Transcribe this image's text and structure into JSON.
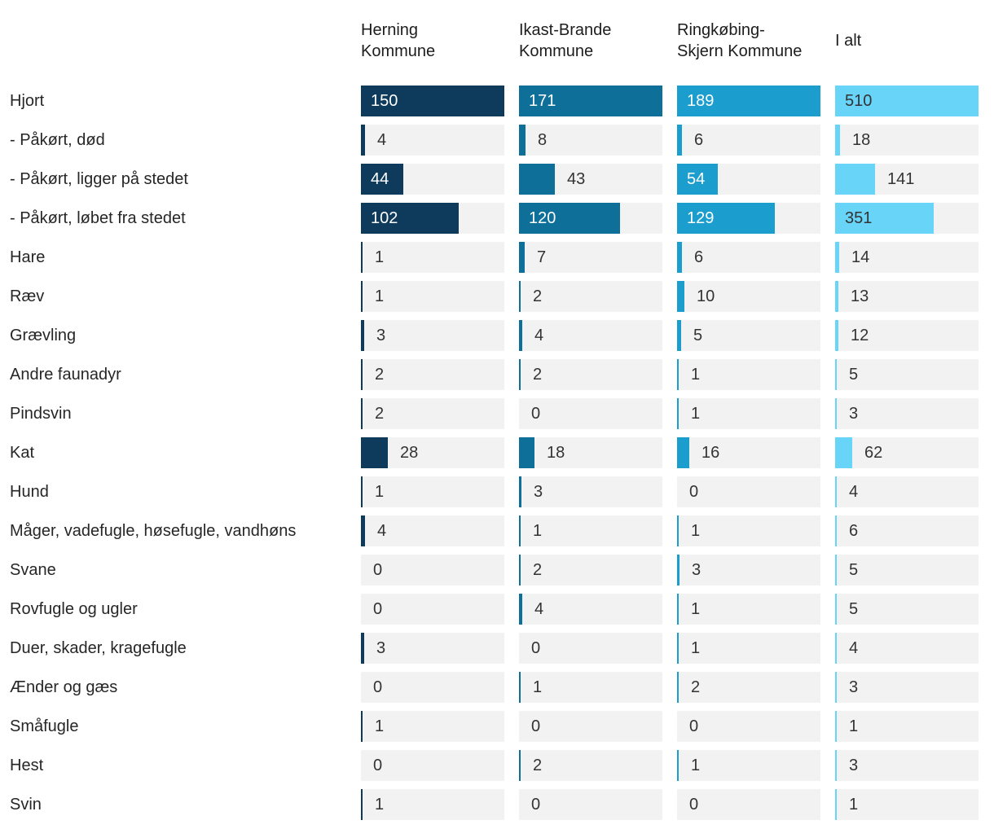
{
  "chart_data": {
    "type": "bar",
    "orientation": "horizontal",
    "title": "",
    "legend_position": "none",
    "grid": false,
    "scaling": "per-column-max",
    "categories": [
      "Hjort",
      "- Påkørt, død",
      "- Påkørt, ligger på stedet",
      "- Påkørt, løbet fra stedet",
      "Hare",
      "Ræv",
      "Grævling",
      "Andre faunadyr",
      "Pindsvin",
      "Kat",
      "Hund",
      "Måger, vadefugle, høsefugle, vandhøns",
      "Svane",
      "Rovfugle og ugler",
      "Duer, skader, kragefugle",
      "Ænder og gæs",
      "Småfugle",
      "Hest",
      "Svin"
    ],
    "series": [
      {
        "name": "Herning Kommune",
        "color": "#0e3a5c",
        "values": [
          150,
          4,
          44,
          102,
          1,
          1,
          3,
          2,
          2,
          28,
          1,
          4,
          0,
          0,
          3,
          0,
          1,
          0,
          1
        ]
      },
      {
        "name": "Ikast-Brande Kommune",
        "color": "#0e6f99",
        "values": [
          171,
          8,
          43,
          120,
          7,
          2,
          4,
          2,
          0,
          18,
          3,
          1,
          2,
          4,
          0,
          1,
          0,
          2,
          0
        ]
      },
      {
        "name": "Ringkøbing-Skjern Kommune",
        "color": "#1b9ecd",
        "values": [
          189,
          6,
          54,
          129,
          6,
          10,
          5,
          1,
          1,
          16,
          0,
          1,
          3,
          1,
          1,
          2,
          0,
          1,
          0
        ]
      },
      {
        "name": "I alt",
        "color": "#67d4f8",
        "values": [
          510,
          18,
          141,
          351,
          14,
          13,
          12,
          5,
          3,
          62,
          4,
          6,
          5,
          5,
          4,
          3,
          1,
          3,
          1
        ]
      }
    ],
    "column_max": [
      150,
      171,
      189,
      510
    ]
  },
  "style": {
    "track_color": "#f2f2f2",
    "value_text_dark": "#333333",
    "value_text_light": "#ffffff",
    "label_color": "#262626",
    "header_color": "#1d1d1d"
  }
}
